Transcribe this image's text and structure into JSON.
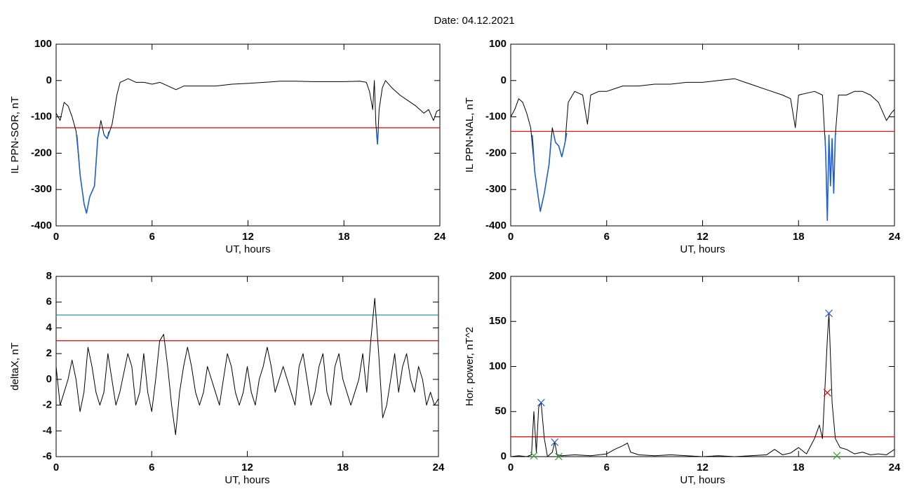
{
  "title": "Date:  04.12.2021",
  "chart_data": [
    {
      "type": "line",
      "ylabel": "IL PPN-SOR, nT",
      "xlabel": "UT, hours",
      "xlim": [
        0,
        24
      ],
      "xticks": [
        0,
        6,
        12,
        18,
        24
      ],
      "ylim": [
        -400,
        100
      ],
      "yticks": [
        -400,
        -300,
        -200,
        -100,
        0,
        100
      ],
      "hlines": [
        {
          "value": -130,
          "color": "#e00000"
        }
      ],
      "series": [
        {
          "color": "#000000",
          "x": [
            0,
            0.25,
            0.5,
            0.75,
            1,
            1.25,
            1.5,
            1.75,
            1.9,
            2.1,
            2.4,
            2.6,
            2.8,
            3.0,
            3.2,
            3.5,
            3.8,
            4.0,
            4.5,
            5,
            5.5,
            6,
            6.5,
            7,
            7.5,
            8,
            9,
            10,
            11,
            12,
            13,
            14,
            15,
            16,
            17,
            18,
            19,
            19.4,
            19.6,
            19.8,
            19.9,
            20,
            20.1,
            20.2,
            20.4,
            20.6,
            21,
            21.5,
            22,
            22.5,
            23,
            23.3,
            23.6,
            23.8,
            24
          ],
          "values": [
            -90,
            -110,
            -60,
            -70,
            -100,
            -140,
            -260,
            -340,
            -365,
            -320,
            -290,
            -160,
            -110,
            -150,
            -160,
            -120,
            -40,
            -5,
            5,
            -5,
            -5,
            -10,
            -5,
            -15,
            -25,
            -15,
            -15,
            -15,
            -10,
            -8,
            -5,
            -2,
            -2,
            -3,
            -3,
            -3,
            -2,
            -5,
            -30,
            -80,
            0,
            -120,
            -175,
            -80,
            -20,
            0,
            -20,
            -40,
            -55,
            -70,
            -90,
            -80,
            -110,
            -85,
            -80
          ]
        },
        {
          "color": "#1f5fd0",
          "x": [
            1.3,
            1.5,
            1.75,
            1.9,
            2.1,
            2.4,
            2.6,
            2.7
          ],
          "values": [
            -150,
            -260,
            -340,
            -365,
            -320,
            -290,
            -160,
            -135
          ]
        },
        {
          "color": "#1f5fd0",
          "x": [
            3.0,
            3.2,
            3.3
          ],
          "values": [
            -150,
            -160,
            -140
          ]
        },
        {
          "color": "#1f5fd0",
          "x": [
            20.05,
            20.1,
            20.15
          ],
          "values": [
            -150,
            -175,
            -130
          ]
        }
      ]
    },
    {
      "type": "line",
      "ylabel": "IL PPN-NAL, nT",
      "xlabel": "UT, hours",
      "xlim": [
        0,
        24
      ],
      "xticks": [
        0,
        6,
        12,
        18,
        24
      ],
      "ylim": [
        -400,
        100
      ],
      "yticks": [
        -400,
        -300,
        -200,
        -100,
        0,
        100
      ],
      "hlines": [
        {
          "value": -140,
          "color": "#e00000"
        }
      ],
      "series": [
        {
          "color": "#000000",
          "x": [
            0,
            0.25,
            0.5,
            0.75,
            1,
            1.25,
            1.5,
            1.75,
            1.85,
            2.1,
            2.4,
            2.6,
            2.8,
            3.0,
            3.2,
            3.4,
            3.6,
            4,
            4.5,
            4.8,
            5,
            5.5,
            6,
            7,
            8,
            9,
            10,
            11,
            12,
            13,
            14,
            15,
            16,
            17,
            17.5,
            17.8,
            18,
            19,
            19.5,
            19.7,
            19.8,
            19.9,
            20,
            20.1,
            20.2,
            20.3,
            20.5,
            21,
            21.5,
            22,
            22.5,
            23,
            23.5,
            23.8,
            24
          ],
          "values": [
            -100,
            -80,
            -50,
            -60,
            -90,
            -130,
            -250,
            -330,
            -360,
            -310,
            -230,
            -130,
            -170,
            -180,
            -210,
            -170,
            -60,
            -30,
            -40,
            -120,
            -40,
            -30,
            -30,
            -15,
            -15,
            -10,
            -10,
            -5,
            -5,
            0,
            5,
            -10,
            -25,
            -40,
            -50,
            -130,
            -40,
            -30,
            -40,
            -200,
            -385,
            -150,
            -290,
            -160,
            -310,
            -150,
            -40,
            -40,
            -30,
            -30,
            -40,
            -60,
            -110,
            -90,
            -80
          ]
        },
        {
          "color": "#1f5fd0",
          "x": [
            1.35,
            1.5,
            1.75,
            1.85,
            2.1,
            2.4,
            2.55
          ],
          "values": [
            -150,
            -250,
            -330,
            -360,
            -310,
            -230,
            -150
          ]
        },
        {
          "color": "#1f5fd0",
          "x": [
            2.7,
            2.8,
            3.0,
            3.2,
            3.4,
            3.5
          ],
          "values": [
            -150,
            -170,
            -180,
            -210,
            -170,
            -145
          ]
        },
        {
          "color": "#1f5fd0",
          "x": [
            19.65,
            19.7,
            19.8,
            19.9,
            20,
            20.1,
            20.2,
            20.3,
            20.35
          ],
          "values": [
            -150,
            -200,
            -385,
            -150,
            -290,
            -160,
            -310,
            -150,
            -145
          ]
        }
      ]
    },
    {
      "type": "line",
      "ylabel": "deltaX, nT",
      "xlabel": "UT, hours",
      "xlim": [
        0,
        24
      ],
      "xticks": [
        0,
        6,
        12,
        18,
        24
      ],
      "ylim": [
        -6,
        8
      ],
      "yticks": [
        -6,
        -4,
        -2,
        0,
        2,
        4,
        6,
        8
      ],
      "hlines": [
        {
          "value": 5,
          "color": "#1a8a9a"
        },
        {
          "value": 3,
          "color": "#e00000"
        }
      ],
      "series": [
        {
          "color": "#000000",
          "x": [
            0,
            0.25,
            0.5,
            0.75,
            1,
            1.25,
            1.5,
            1.75,
            2,
            2.25,
            2.5,
            2.75,
            3,
            3.25,
            3.5,
            3.75,
            4,
            4.25,
            4.5,
            4.75,
            5,
            5.25,
            5.5,
            5.75,
            6,
            6.25,
            6.5,
            6.75,
            7,
            7.25,
            7.5,
            7.75,
            8,
            8.25,
            8.5,
            8.75,
            9,
            9.25,
            9.5,
            9.75,
            10,
            10.25,
            10.5,
            10.75,
            11,
            11.25,
            11.5,
            11.75,
            12,
            12.25,
            12.5,
            12.75,
            13,
            13.25,
            13.5,
            13.75,
            14,
            14.25,
            14.5,
            14.75,
            15,
            15.25,
            15.5,
            15.75,
            16,
            16.25,
            16.5,
            16.75,
            17,
            17.25,
            17.5,
            17.75,
            18,
            18.25,
            18.5,
            18.75,
            19,
            19.25,
            19.5,
            19.75,
            20,
            20.25,
            20.5,
            20.75,
            21,
            21.25,
            21.5,
            21.75,
            22,
            22.25,
            22.5,
            22.75,
            23,
            23.25,
            23.5,
            23.75,
            24
          ],
          "values": [
            1,
            -2,
            -1,
            0,
            1.5,
            0,
            -2.5,
            -1,
            2.5,
            1,
            -1,
            -2,
            -1,
            2,
            0,
            -2,
            -1,
            0.5,
            2,
            1,
            -2,
            -1,
            2,
            -1,
            -2.5,
            0,
            3,
            3.5,
            1,
            -2,
            -4.3,
            -1,
            1,
            2.5,
            1,
            -1,
            -2,
            -1,
            1,
            0,
            -1,
            -2,
            0,
            2,
            1,
            -1,
            -2,
            -1,
            1,
            -1,
            -2,
            0,
            1,
            2.5,
            1,
            -1,
            0,
            1,
            0,
            -1,
            -2,
            1,
            2,
            0,
            -2,
            -1,
            1,
            2,
            -1,
            -2,
            1,
            2,
            0,
            -1,
            -2,
            -1,
            0,
            2,
            -1,
            3,
            6.3,
            2,
            -3,
            -2,
            0,
            2,
            -1,
            1,
            2,
            0,
            -1,
            1,
            0,
            -2,
            -1,
            -2,
            -1.5
          ]
        }
      ]
    },
    {
      "type": "line",
      "ylabel": "Hor. power, nT^2",
      "xlabel": "UT, hours",
      "xlim": [
        0,
        24
      ],
      "xticks": [
        0,
        6,
        12,
        18,
        24
      ],
      "ylim": [
        0,
        200
      ],
      "yticks": [
        0,
        50,
        100,
        150,
        200
      ],
      "hlines": [
        {
          "value": 22,
          "color": "#e00000"
        }
      ],
      "series": [
        {
          "color": "#000000",
          "x": [
            0,
            0.5,
            1,
            1.3,
            1.45,
            1.6,
            1.75,
            1.9,
            2.1,
            2.3,
            2.6,
            2.75,
            2.9,
            3.2,
            4,
            5,
            6,
            6.5,
            7,
            7.3,
            7.5,
            8,
            9,
            10,
            11,
            12,
            13,
            14,
            15,
            16,
            16.5,
            17,
            17.5,
            18,
            18.5,
            19,
            19.3,
            19.5,
            19.8,
            19.9,
            20.1,
            20.3,
            20.6,
            21,
            21.5,
            22,
            22.5,
            23,
            23.5,
            24
          ],
          "values": [
            0,
            1,
            0,
            2,
            50,
            5,
            55,
            60,
            20,
            0,
            5,
            16,
            2,
            1,
            2,
            1,
            3,
            8,
            12,
            15,
            5,
            2,
            1,
            2,
            1,
            0,
            1,
            0,
            1,
            2,
            8,
            2,
            4,
            10,
            3,
            20,
            35,
            20,
            130,
            159,
            60,
            20,
            10,
            8,
            3,
            5,
            2,
            3,
            2,
            8
          ]
        },
        {
          "color": "#1f5fd0",
          "marker": "x",
          "x": [
            1.9,
            2.75,
            19.9
          ],
          "values": [
            60,
            16,
            159
          ]
        },
        {
          "color": "#e00000",
          "marker": "x",
          "x": [
            19.8
          ],
          "values": [
            71
          ]
        },
        {
          "color": "#2ca02c",
          "marker": "x",
          "x": [
            1.45,
            3.0,
            20.4
          ],
          "values": [
            1,
            0,
            1
          ]
        }
      ]
    }
  ]
}
